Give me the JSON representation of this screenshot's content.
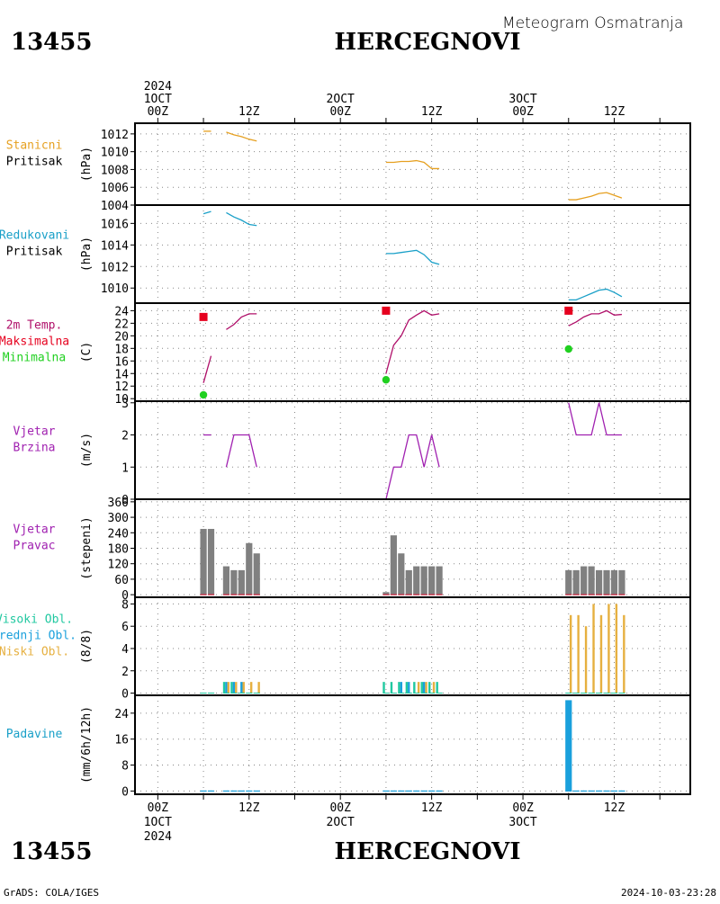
{
  "header": {
    "station_id": "13455",
    "station_name": "HERCEGNOVI",
    "subtitle": "Meteogram Osmatranja",
    "credit": "GrADS: COLA/IGES",
    "timestamp": "2024-10-03-23:28"
  },
  "time_axis": {
    "year": "2024",
    "top_labels": [
      {
        "t": 0,
        "lines": [
          "2024",
          "1OCT",
          "00Z"
        ]
      },
      {
        "t": 12,
        "lines": [
          "12Z"
        ]
      },
      {
        "t": 24,
        "lines": [
          "2OCT",
          "00Z"
        ]
      },
      {
        "t": 36,
        "lines": [
          "12Z"
        ]
      },
      {
        "t": 48,
        "lines": [
          "3OCT",
          "00Z"
        ]
      },
      {
        "t": 60,
        "lines": [
          "12Z"
        ]
      }
    ],
    "bottom_labels": [
      {
        "t": 0,
        "lines": [
          "00Z",
          "1OCT",
          "2024"
        ]
      },
      {
        "t": 12,
        "lines": [
          "12Z"
        ]
      },
      {
        "t": 24,
        "lines": [
          "00Z",
          "2OCT"
        ]
      },
      {
        "t": 36,
        "lines": [
          "12Z"
        ]
      },
      {
        "t": 48,
        "lines": [
          "00Z",
          "3OCT"
        ]
      },
      {
        "t": 60,
        "lines": [
          "12Z"
        ]
      }
    ],
    "range_hours": [
      -3,
      70
    ],
    "grid_hours": [
      0,
      6,
      12,
      18,
      24,
      30,
      36,
      42,
      48,
      54,
      60,
      66
    ]
  },
  "colors": {
    "pressure": "#e6a020",
    "reduced_pressure": "#1aa0c8",
    "temp": "#b0106a",
    "tmax": "#e6001e",
    "tmin": "#20d020",
    "wind": "#a020b0",
    "bars": "#808080",
    "high_cloud": "#20c8a0",
    "mid_cloud": "#1aa0dc",
    "low_cloud": "#e6b040",
    "precip": "#1aa0dc",
    "title_wind": "#a020b0",
    "title_precip": "#1aa0c8"
  },
  "chart_data": [
    {
      "type": "line",
      "panel": "station_pressure",
      "title_lines": [
        "Stanicni",
        "Pritisak"
      ],
      "ylabel": "(hPa)",
      "ylim": [
        1004,
        1013.2
      ],
      "yticks": [
        1004,
        1006,
        1008,
        1010,
        1012
      ],
      "series": [
        {
          "x": [
            6,
            7
          ],
          "y": [
            1012.3,
            1012.3
          ]
        },
        {
          "x": [
            9,
            10,
            11,
            12,
            13
          ],
          "y": [
            1012.2,
            1011.9,
            1011.7,
            1011.4,
            1011.2
          ]
        },
        {
          "x": [
            30,
            31,
            32,
            33,
            34,
            35,
            36,
            37
          ],
          "y": [
            1008.8,
            1008.8,
            1008.9,
            1008.9,
            1009.0,
            1008.8,
            1008.1,
            1008.1
          ]
        },
        {
          "x": [
            54,
            55,
            56,
            57,
            58,
            59,
            60,
            61
          ],
          "y": [
            1004.6,
            1004.6,
            1004.8,
            1005.0,
            1005.3,
            1005.4,
            1005.1,
            1004.8
          ]
        }
      ]
    },
    {
      "type": "line",
      "panel": "reduced_pressure",
      "title_lines": [
        "Redukovani",
        "Pritisak"
      ],
      "ylabel": "(hPa)",
      "ylim": [
        1008.6,
        1017.7
      ],
      "yticks": [
        1010,
        1012,
        1014,
        1016
      ],
      "series": [
        {
          "x": [
            6,
            7
          ],
          "y": [
            1016.9,
            1017.1
          ]
        },
        {
          "x": [
            9,
            10,
            11,
            12,
            13
          ],
          "y": [
            1017.0,
            1016.6,
            1016.3,
            1015.9,
            1015.8
          ]
        },
        {
          "x": [
            30,
            31,
            32,
            33,
            34,
            35,
            36,
            37
          ],
          "y": [
            1013.2,
            1013.2,
            1013.3,
            1013.4,
            1013.5,
            1013.1,
            1012.4,
            1012.2
          ]
        },
        {
          "x": [
            54,
            55,
            56,
            57,
            58,
            59,
            60,
            61
          ],
          "y": [
            1008.9,
            1008.9,
            1009.2,
            1009.5,
            1009.8,
            1009.9,
            1009.6,
            1009.2
          ]
        }
      ]
    },
    {
      "type": "line",
      "panel": "temperature",
      "title_lines": [
        "2m Temp.",
        "Maksimalna",
        "Minimalna"
      ],
      "ylabel": "(C)",
      "ylim": [
        9.6,
        25.2
      ],
      "yticks": [
        10,
        12,
        14,
        16,
        18,
        20,
        22,
        24
      ],
      "series": [
        {
          "name": "2m Temp.",
          "segments": [
            {
              "x": [
                6,
                7
              ],
              "y": [
                12.5,
                16.8
              ]
            },
            {
              "x": [
                9,
                10,
                11,
                12,
                13
              ],
              "y": [
                21.0,
                21.8,
                23.0,
                23.5,
                23.5
              ]
            },
            {
              "x": [
                30,
                31,
                32,
                33,
                34,
                35,
                36,
                37
              ],
              "y": [
                14.0,
                18.5,
                20.0,
                22.5,
                23.3,
                24.0,
                23.3,
                23.5
              ]
            },
            {
              "x": [
                54,
                55,
                56,
                57,
                58,
                59,
                60,
                61
              ],
              "y": [
                21.6,
                22.2,
                23.0,
                23.5,
                23.5,
                24.0,
                23.3,
                23.4
              ]
            }
          ]
        },
        {
          "name": "Maksimalna",
          "points": [
            {
              "x": 6,
              "y": 23.0
            },
            {
              "x": 30,
              "y": 24.0
            },
            {
              "x": 54,
              "y": 24.0
            }
          ]
        },
        {
          "name": "Minimalna",
          "points": [
            {
              "x": 6,
              "y": 10.6
            },
            {
              "x": 30,
              "y": 13.0
            },
            {
              "x": 54,
              "y": 17.9
            }
          ]
        }
      ]
    },
    {
      "type": "line",
      "panel": "wind_speed",
      "title_lines": [
        "Vjetar",
        "Brzina"
      ],
      "ylabel": "(m/s)",
      "ylim": [
        0,
        3.05
      ],
      "yticks": [
        0,
        1,
        2,
        3
      ],
      "series": [
        {
          "x": [
            6,
            7
          ],
          "y": [
            2,
            2
          ]
        },
        {
          "x": [
            9,
            10,
            11,
            12,
            13
          ],
          "y": [
            1,
            2,
            2,
            2,
            1
          ]
        },
        {
          "x": [
            30,
            31,
            32,
            33,
            34,
            35,
            36,
            37
          ],
          "y": [
            0,
            1,
            1,
            2,
            2,
            1,
            2,
            1
          ]
        },
        {
          "x": [
            54,
            55,
            56,
            57,
            58,
            59,
            60,
            61
          ],
          "y": [
            3,
            2,
            2,
            2,
            3,
            2,
            2,
            2
          ]
        }
      ]
    },
    {
      "type": "bar",
      "panel": "wind_direction",
      "title_lines": [
        "Vjetar",
        "Pravac"
      ],
      "ylabel": "(stepeni)",
      "ylim": [
        -10,
        370
      ],
      "yticks": [
        0,
        60,
        120,
        180,
        240,
        300,
        360
      ],
      "x": [
        6,
        7,
        9,
        10,
        11,
        12,
        13,
        30,
        31,
        32,
        33,
        34,
        35,
        36,
        37,
        54,
        55,
        56,
        57,
        58,
        59,
        60,
        61
      ],
      "values": [
        255,
        255,
        110,
        95,
        95,
        200,
        160,
        10,
        230,
        160,
        95,
        110,
        110,
        110,
        110,
        95,
        95,
        110,
        110,
        95,
        95,
        95,
        95
      ]
    },
    {
      "type": "bar",
      "panel": "cloud_cover",
      "title_lines": [
        "Visoki Obl.",
        "Srednji Obl.",
        "Niski Obl."
      ],
      "ylabel": "(8/8)",
      "ylim": [
        -0.2,
        8.6
      ],
      "yticks": [
        0,
        2,
        4,
        6,
        8
      ],
      "x": [
        6,
        7,
        9,
        10,
        11,
        12,
        13,
        30,
        31,
        32,
        33,
        34,
        35,
        36,
        37,
        54,
        55,
        56,
        57,
        58,
        59,
        60,
        61
      ],
      "series": [
        {
          "name": "Visoki Obl.",
          "values": [
            0,
            0,
            1,
            1,
            0,
            0,
            0,
            1,
            1,
            1,
            1,
            1,
            1,
            1,
            1,
            0,
            0,
            0,
            0,
            0,
            0,
            0,
            0
          ]
        },
        {
          "name": "Srednji Obl.",
          "values": [
            0,
            0,
            1,
            1,
            1,
            0,
            0,
            0,
            0,
            1,
            1,
            0,
            1,
            0,
            0,
            0,
            0,
            0,
            0,
            0,
            0,
            0,
            0
          ]
        },
        {
          "name": "Niski Obl.",
          "values": [
            0,
            0,
            1,
            1,
            1,
            1,
            1,
            0,
            0,
            0,
            0,
            1,
            1,
            1,
            0,
            7,
            7,
            6,
            8,
            7,
            8,
            8,
            7
          ]
        }
      ]
    },
    {
      "type": "bar",
      "panel": "precipitation",
      "title_lines": [
        "Padavine"
      ],
      "ylabel": "(mm/6h/12h)",
      "ylim": [
        -1,
        29.5
      ],
      "yticks": [
        0,
        8,
        16,
        24
      ],
      "x": [
        6,
        7,
        9,
        10,
        11,
        12,
        13,
        30,
        31,
        32,
        33,
        34,
        35,
        36,
        37,
        54,
        55,
        56,
        57,
        58,
        59,
        60,
        61
      ],
      "values": [
        0,
        0,
        0,
        0,
        0,
        0,
        0,
        0,
        0,
        0,
        0,
        0,
        0,
        0,
        0,
        28,
        0,
        0,
        0,
        0,
        0,
        0,
        0
      ]
    }
  ]
}
